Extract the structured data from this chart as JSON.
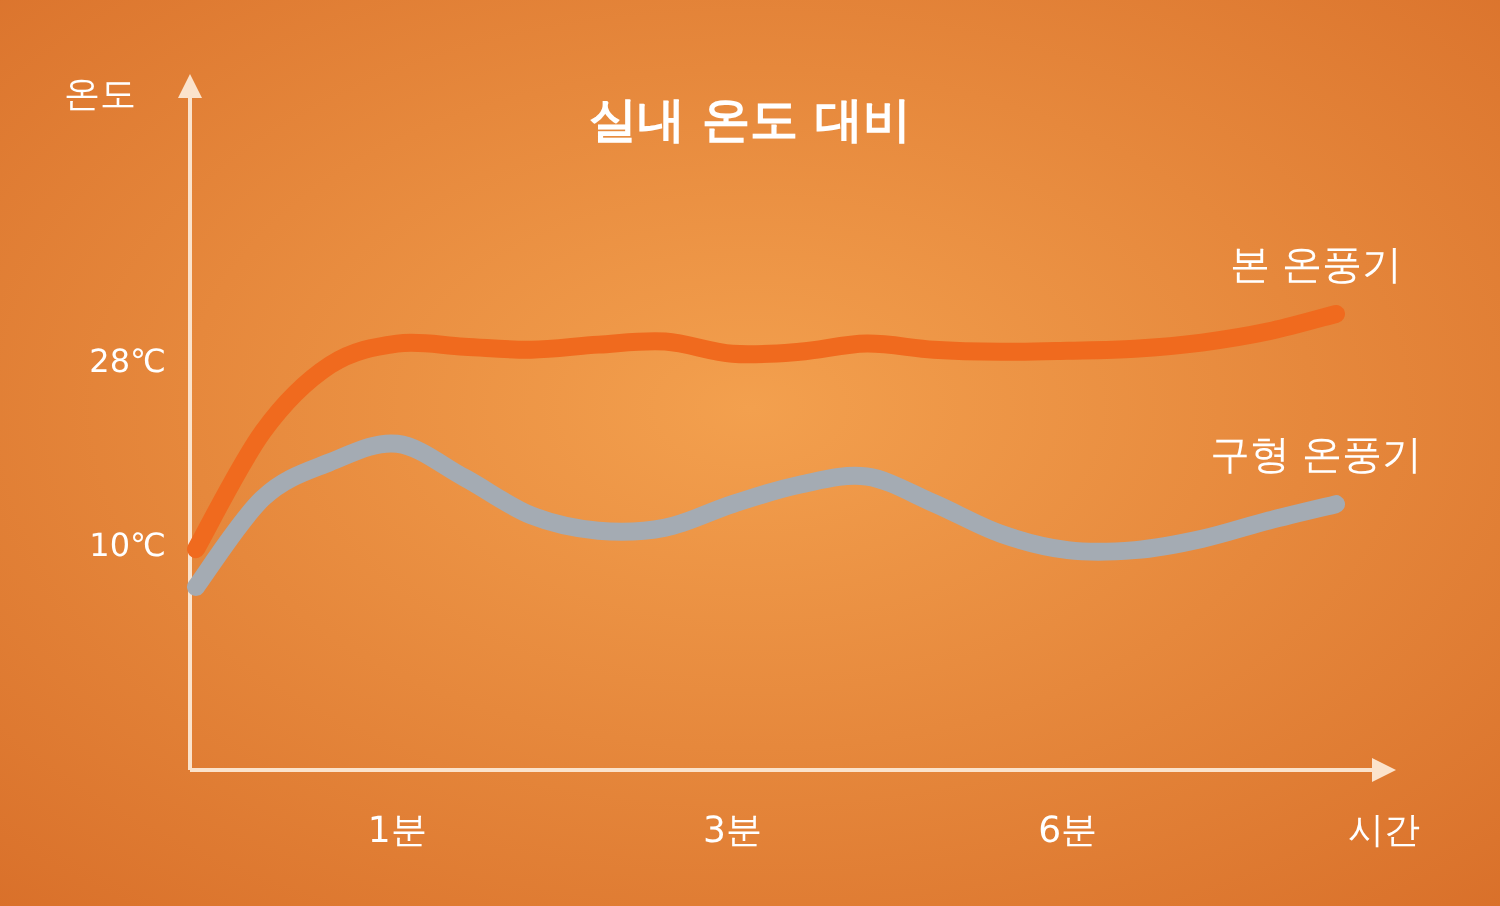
{
  "chart_data": {
    "type": "line",
    "title": "실내 온도 대비",
    "xlabel": "시간",
    "ylabel": "온도",
    "categories": [
      null,
      null,
      null,
      "1분",
      null,
      null,
      null,
      null,
      "3분",
      null,
      null,
      null,
      null,
      "6분",
      null,
      null,
      null,
      null
    ],
    "ylim": [
      -12.1,
      54.4
    ],
    "yticks": [
      {
        "value": 10,
        "label": "10℃"
      },
      {
        "value": 28,
        "label": "28℃"
      }
    ],
    "series": [
      {
        "name": "본 온풍기",
        "color": "#f06a1e",
        "values": [
          9.5,
          21,
          27.5,
          29.6,
          29.3,
          29.0,
          29.5,
          29.8,
          28.6,
          28.8,
          29.6,
          29.0,
          28.8,
          28.9,
          29.1,
          29.7,
          30.8,
          32.5
        ]
      },
      {
        "name": "구형 온풍기",
        "color": "#a4abb3",
        "values": [
          5.8,
          14.5,
          18,
          19.8,
          16.5,
          12.8,
          11.3,
          11.6,
          13.9,
          15.8,
          16.6,
          14.0,
          11,
          9.4,
          9.4,
          10.5,
          12.3,
          13.9
        ]
      }
    ]
  }
}
